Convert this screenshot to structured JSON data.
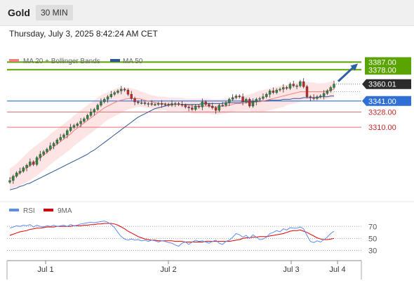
{
  "header": {
    "symbol": "Gold",
    "timeframe": "30 MIN",
    "datetime": "Thursday, July 3, 2025 8:42:24 AM CET"
  },
  "colors": {
    "bull": "#2e8b3a",
    "bear": "#c62828",
    "ma20": "#f08080",
    "ma50": "#2f5597",
    "bands": "#fde0e0",
    "target": "#5aa400",
    "support": "#2f6fd6",
    "level": "#e57373",
    "rsi": "#5b8def",
    "rsi_ma": "#e00000",
    "arrow": "#2f5fa6"
  },
  "chart_data": [
    {
      "type": "candlestick",
      "legend": [
        "MA 20 + Bollinger Bands",
        "MA 50"
      ],
      "ylim": [
        3232,
        3394
      ],
      "current_price": "3360.01",
      "levels": [
        {
          "value": 3387.0,
          "label": "3387.00",
          "kind": "target"
        },
        {
          "value": 3378.0,
          "label": "3378.00",
          "kind": "target"
        },
        {
          "value": 3341.0,
          "label": "3341.00",
          "kind": "support"
        },
        {
          "value": 3328.0,
          "label": "3328.00",
          "kind": "level"
        },
        {
          "value": 3310.0,
          "label": "3310.00",
          "kind": "level"
        }
      ],
      "x_ticks": [
        "Jul 1",
        "Jul 2",
        "Jul 3",
        "Jul 4"
      ],
      "closes": [
        3247,
        3252,
        3256,
        3258,
        3262,
        3265,
        3269,
        3266,
        3274,
        3278,
        3281,
        3284,
        3288,
        3291,
        3295,
        3298,
        3301,
        3306,
        3310,
        3312,
        3314,
        3317,
        3320,
        3324,
        3328,
        3331,
        3336,
        3340,
        3343,
        3346,
        3349,
        3351,
        3353,
        3355,
        3354,
        3349,
        3344,
        3340,
        3339,
        3339,
        3338,
        3338,
        3337,
        3337,
        3338,
        3337,
        3337,
        3336,
        3338,
        3338,
        3337,
        3336,
        3334,
        3333,
        3331,
        3335,
        3334,
        3340,
        3337,
        3335,
        3333,
        3330,
        3336,
        3336,
        3339,
        3343,
        3345,
        3347,
        3346,
        3340,
        3343,
        3335,
        3340,
        3343,
        3344,
        3346,
        3349,
        3353,
        3351,
        3354,
        3355,
        3357,
        3356,
        3361,
        3359,
        3359,
        3364,
        3358,
        3346,
        3345,
        3344,
        3346,
        3347,
        3350,
        3353,
        3357,
        3361
      ],
      "ma20": [
        3249,
        3251,
        3253,
        3256,
        3259,
        3262,
        3265,
        3268,
        3271,
        3274,
        3277,
        3280,
        3284,
        3287,
        3290,
        3293,
        3296,
        3299,
        3302,
        3306,
        3309,
        3312,
        3315,
        3318,
        3321,
        3324,
        3327,
        3330,
        3333,
        3335,
        3337,
        3339,
        3341,
        3342,
        3343,
        3344,
        3344,
        3344,
        3344,
        3343,
        3342,
        3341,
        3340,
        3339,
        3338,
        3338,
        3338,
        3337,
        3337,
        3337,
        3337,
        3337,
        3336,
        3336,
        3335,
        3335,
        3335,
        3335,
        3335,
        3335,
        3334,
        3334,
        3334,
        3335,
        3335,
        3336,
        3337,
        3338,
        3338,
        3338,
        3339,
        3339,
        3339,
        3340,
        3340,
        3341,
        3342,
        3343,
        3344,
        3345,
        3346,
        3347,
        3348,
        3349,
        3350,
        3351,
        3352,
        3352,
        3352,
        3352,
        3352,
        3352,
        3352,
        3352,
        3353,
        3354,
        3355
      ],
      "ma50": [
        3236,
        3237,
        3238,
        3240,
        3241,
        3243,
        3244,
        3246,
        3248,
        3250,
        3252,
        3254,
        3256,
        3258,
        3260,
        3262,
        3264,
        3266,
        3268,
        3270,
        3272,
        3274,
        3276,
        3278,
        3281,
        3283,
        3286,
        3289,
        3292,
        3295,
        3298,
        3301,
        3304,
        3307,
        3310,
        3313,
        3316,
        3319,
        3322,
        3324,
        3326,
        3328,
        3330,
        3332,
        3333,
        3334,
        3335,
        3336,
        3337,
        3337,
        3337,
        3337,
        3337,
        3337,
        3337,
        3337,
        3337,
        3338,
        3338,
        3338,
        3338,
        3338,
        3338,
        3338,
        3339,
        3339,
        3339,
        3339,
        3339,
        3340,
        3340,
        3340,
        3340,
        3341,
        3341,
        3341,
        3341,
        3342,
        3342,
        3342,
        3342,
        3343,
        3343,
        3343,
        3344,
        3344,
        3344,
        3345,
        3345,
        3345,
        3345,
        3345,
        3346,
        3346,
        3346,
        3347,
        3347
      ],
      "band_width": [
        12,
        13,
        14,
        15,
        16,
        17,
        18,
        18,
        18,
        18,
        18,
        18,
        18,
        18,
        18,
        18,
        18,
        18,
        18,
        18,
        18,
        18,
        18,
        18,
        18,
        18,
        18,
        18,
        17,
        16,
        16,
        16,
        16,
        15,
        14,
        13,
        12,
        11,
        10,
        9,
        9,
        8,
        8,
        8,
        8,
        8,
        8,
        8,
        8,
        8,
        8,
        8,
        8,
        8,
        9,
        9,
        9,
        9,
        9,
        9,
        9,
        9,
        9,
        9,
        9,
        9,
        9,
        9,
        9,
        9,
        9,
        10,
        11,
        12,
        13,
        13,
        13,
        13,
        13,
        13,
        13,
        13,
        12,
        12,
        12,
        12,
        12,
        11,
        11,
        11,
        11,
        10,
        10,
        10,
        10,
        10,
        10
      ]
    },
    {
      "type": "line",
      "legend": [
        "RSI",
        "9MA"
      ],
      "ylim": [
        20,
        82
      ],
      "ticks": [
        {
          "value": 70,
          "label": "70"
        },
        {
          "value": 50,
          "label": "50"
        },
        {
          "value": 30,
          "label": "30"
        }
      ],
      "rsi": [
        67,
        69,
        71,
        70,
        72,
        71,
        73,
        69,
        72,
        70,
        69,
        71,
        70,
        72,
        70,
        71,
        72,
        70,
        73,
        71,
        72,
        74,
        75,
        76,
        77,
        76,
        77,
        78,
        79,
        77,
        73,
        68,
        60,
        53,
        49,
        47,
        49,
        47,
        48,
        46,
        47,
        45,
        47,
        46,
        44,
        46,
        45,
        43,
        42,
        39,
        37,
        42,
        44,
        40,
        44,
        47,
        45,
        46,
        44,
        42,
        45,
        47,
        42,
        40,
        45,
        47,
        52,
        58,
        56,
        52,
        55,
        50,
        56,
        52,
        48,
        49,
        52,
        58,
        60,
        63,
        61,
        66,
        64,
        68,
        67,
        67,
        69,
        66,
        55,
        45,
        43,
        46,
        44,
        48,
        52,
        58,
        62
      ],
      "ma9": [
        55,
        57,
        59,
        61,
        62,
        63,
        65,
        66,
        67,
        67,
        68,
        69,
        69,
        69,
        70,
        70,
        70,
        70,
        70,
        71,
        71,
        71,
        72,
        72,
        73,
        73,
        74,
        74,
        75,
        75,
        75,
        74,
        72,
        69,
        66,
        62,
        59,
        56,
        53,
        51,
        49,
        48,
        47,
        47,
        46,
        46,
        46,
        46,
        46,
        45,
        45,
        45,
        44,
        44,
        44,
        44,
        44,
        44,
        45,
        45,
        45,
        45,
        45,
        45,
        45,
        45,
        46,
        47,
        48,
        50,
        51,
        51,
        52,
        52,
        53,
        53,
        53,
        54,
        55,
        56,
        57,
        58,
        60,
        62,
        63,
        63,
        64,
        62,
        60,
        57,
        54,
        51,
        49,
        48,
        48,
        49,
        50
      ]
    }
  ]
}
